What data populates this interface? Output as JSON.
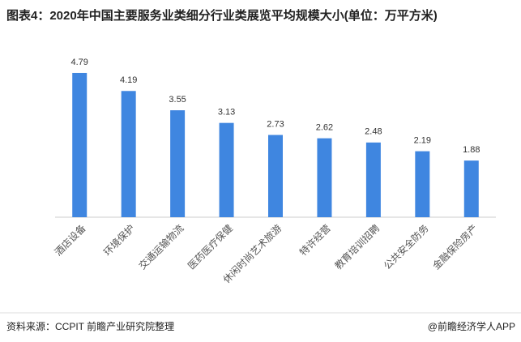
{
  "chart_data": {
    "type": "bar",
    "title": "图表4：2020年中国主要服务业类细分行业类展览平均规模大小(单位：万平方米)",
    "categories": [
      "酒店设备",
      "环境保护",
      "交通运输物流",
      "医药医疗保健",
      "休闲时尚艺术旅游",
      "特许经营",
      "教育培训招聘",
      "公共安全防务",
      "金融保险房产"
    ],
    "values": [
      4.79,
      4.19,
      3.55,
      3.13,
      2.73,
      2.62,
      2.48,
      2.19,
      1.88
    ],
    "color": "#3f86e0",
    "ylim": [
      0,
      6
    ],
    "source": "资料来源：CCPIT 前瞻产业研究院整理",
    "credit": "@前瞻经济学人APP"
  }
}
